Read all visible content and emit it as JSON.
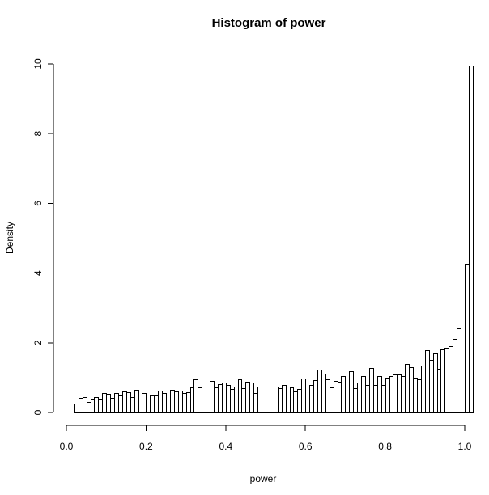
{
  "chart_data": {
    "type": "bar",
    "title": "Histogram of power",
    "xlabel": "power",
    "ylabel": "Density",
    "xlim": [
      0,
      1
    ],
    "ylim": [
      0,
      10
    ],
    "x_ticks": [
      0.0,
      0.2,
      0.4,
      0.6,
      0.8,
      1.0
    ],
    "x_tick_labels": [
      "0.0",
      "0.2",
      "0.4",
      "0.6",
      "0.8",
      "1.0"
    ],
    "y_ticks": [
      0,
      2,
      4,
      6,
      8,
      10
    ],
    "y_tick_labels": [
      "0",
      "2",
      "4",
      "6",
      "8",
      "10"
    ],
    "grid": false,
    "bin_width": 0.01,
    "bin_start": 0.02,
    "values": [
      0.25,
      0.42,
      0.45,
      0.3,
      0.4,
      0.44,
      0.4,
      0.55,
      0.53,
      0.42,
      0.55,
      0.5,
      0.6,
      0.58,
      0.45,
      0.65,
      0.62,
      0.55,
      0.48,
      0.5,
      0.5,
      0.62,
      0.55,
      0.48,
      0.66,
      0.6,
      0.62,
      0.56,
      0.58,
      0.72,
      0.95,
      0.72,
      0.85,
      0.75,
      0.9,
      0.72,
      0.82,
      0.85,
      0.78,
      0.68,
      0.75,
      0.96,
      0.7,
      0.88,
      0.85,
      0.55,
      0.75,
      0.85,
      0.75,
      0.85,
      0.75,
      0.7,
      0.78,
      0.75,
      0.72,
      0.6,
      0.68,
      0.98,
      0.62,
      0.78,
      0.92,
      1.22,
      1.12,
      0.95,
      0.72,
      0.9,
      0.88,
      1.05,
      0.85,
      1.18,
      0.7,
      0.85,
      1.05,
      0.8,
      1.28,
      0.78,
      1.05,
      0.78,
      1.0,
      1.05,
      1.1,
      1.1,
      1.05,
      1.4,
      1.3,
      1.0,
      0.95,
      1.35,
      1.78,
      1.5,
      1.7,
      1.25,
      1.8,
      1.85,
      1.9,
      2.1,
      2.42,
      2.8,
      4.25,
      9.95
    ]
  }
}
